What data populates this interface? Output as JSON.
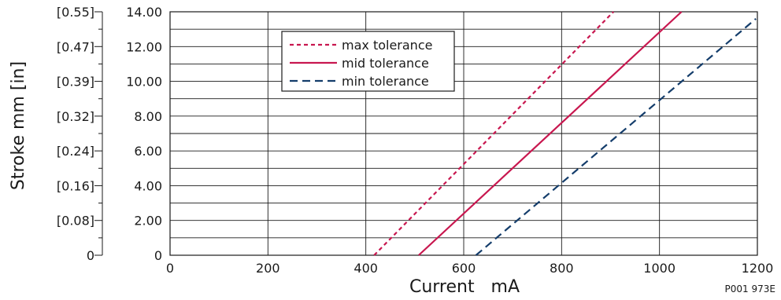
{
  "chart_data": {
    "type": "line",
    "xlabel": "Current   mA",
    "ylabel": "Stroke mm [in]",
    "xlim": [
      0,
      1200
    ],
    "ylim": [
      0,
      14
    ],
    "x_ticks": [
      "0",
      "200",
      "400",
      "600",
      "800",
      "1000",
      "1200"
    ],
    "y_ticks": [
      "0",
      "2.00",
      "4.00",
      "6.00",
      "8.00",
      "10.00",
      "12.00",
      "14.00"
    ],
    "y_ticks_in": [
      "0",
      "[0.08]",
      "[0.16]",
      "[0.24]",
      "[0.32]",
      "[0.39]",
      "[0.47]",
      "[0.55]"
    ],
    "grid": true,
    "legend_position": "top-center",
    "figure_code": "P001 973E",
    "series": [
      {
        "name": "max tolerance",
        "color": "#c8174f",
        "dash": "short-dash",
        "x": [
          417,
          906
        ],
        "y": [
          0,
          14
        ]
      },
      {
        "name": "mid tolerance",
        "color": "#c8174f",
        "dash": "solid",
        "x": [
          508,
          1045
        ],
        "y": [
          0,
          14
        ]
      },
      {
        "name": "min tolerance",
        "color": "#143d6b",
        "dash": "long-dash",
        "x": [
          625,
          1197
        ],
        "y": [
          0,
          13.6
        ]
      }
    ]
  }
}
